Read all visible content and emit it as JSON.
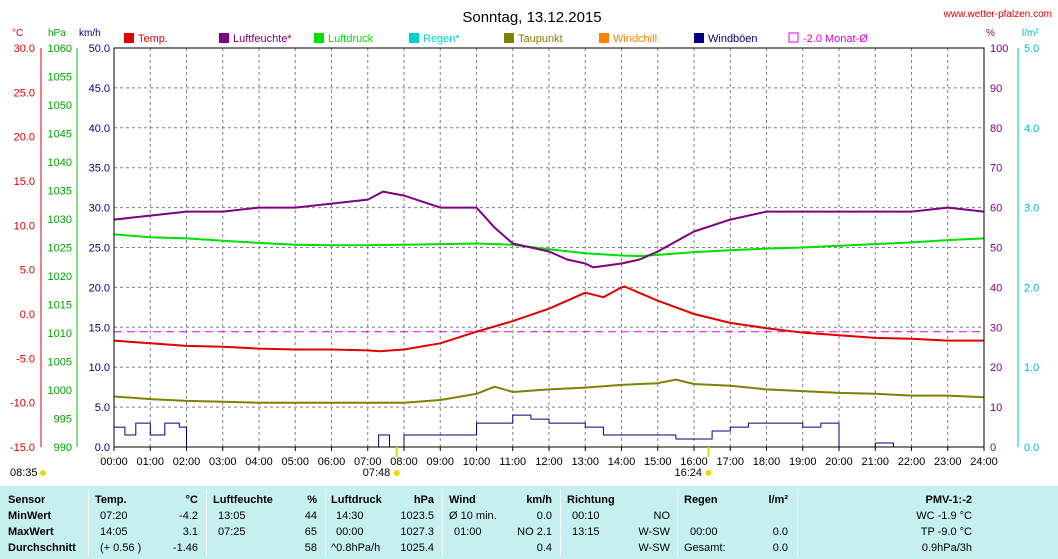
{
  "title": "Sonntag, 13.12.2015",
  "site": "www.wetter-pfalzen.com",
  "colors": {
    "temp": "#e00000",
    "humidity": "#800080",
    "pressure": "#00e000",
    "rain": "#00d0d0",
    "dewpoint": "#808000",
    "windchill": "#ff8000",
    "gusts": "#000080",
    "avg": "#e000e0",
    "grid": "#808080"
  },
  "axes": {
    "temp_unit": "°C",
    "pressure_unit": "hPa",
    "wind_unit": "km/h",
    "humidity_unit": "%",
    "rain_unit": "l/m²",
    "temp_ticks": [
      "30.0",
      "25.0",
      "20.0",
      "15.0",
      "10.0",
      "5.0",
      "0.0",
      "-5.0",
      "-10.0",
      "-15.0"
    ],
    "pressure_ticks": [
      "1060",
      "1055",
      "1050",
      "1045",
      "1040",
      "1035",
      "1030",
      "1025",
      "1020",
      "1015",
      "1010",
      "1005",
      "1000",
      "995",
      "990"
    ],
    "wind_ticks": [
      "50.0",
      "45.0",
      "40.0",
      "35.0",
      "30.0",
      "25.0",
      "20.0",
      "15.0",
      "10.0",
      "5.0",
      "0.0"
    ],
    "humidity_ticks": [
      "100",
      "90",
      "80",
      "70",
      "60",
      "50",
      "40",
      "30",
      "20",
      "10",
      "0"
    ],
    "rain_ticks": [
      "5.0",
      "4.0",
      "3.0",
      "2.0",
      "1.0",
      "0.0"
    ],
    "time_ticks": [
      "00:00",
      "01:00",
      "02:00",
      "03:00",
      "04:00",
      "05:00",
      "06:00",
      "07:00",
      "08:00",
      "09:00",
      "10:00",
      "11:00",
      "12:00",
      "13:00",
      "14:00",
      "15:00",
      "16:00",
      "17:00",
      "18:00",
      "19:00",
      "20:00",
      "21:00",
      "22:00",
      "23:00",
      "24:00"
    ],
    "markers": [
      {
        "label": "08:35",
        "hour": null
      },
      {
        "label": "07:48",
        "hour": 7.8
      },
      {
        "label": "16:24",
        "hour": 16.4
      }
    ]
  },
  "legend": [
    {
      "label": "Temp.",
      "key": "temp"
    },
    {
      "label": "Luftfeuchte*",
      "key": "humidity"
    },
    {
      "label": "Luftdruck",
      "key": "pressure"
    },
    {
      "label": "Regen*",
      "key": "rain"
    },
    {
      "label": "Taupunkt",
      "key": "dewpoint"
    },
    {
      "label": "Windchill",
      "key": "windchill"
    },
    {
      "label": "Windböen",
      "key": "gusts"
    },
    {
      "label": "-2.0 Monat-Ø",
      "key": "avg"
    }
  ],
  "chart_data": {
    "type": "line",
    "x_unit": "hour of day",
    "xlim": [
      0,
      24
    ],
    "temp_ylim": [
      -15,
      30
    ],
    "humidity_ylim": [
      0,
      100
    ],
    "pressure_ylim": [
      990,
      1060
    ],
    "wind_ylim": [
      0,
      50
    ],
    "rain_ylim": [
      0,
      5
    ],
    "series": [
      {
        "name": "Temp.",
        "axis": "temp",
        "unit": "°C",
        "x": [
          0,
          1,
          2,
          3,
          4,
          5,
          6,
          7,
          7.33,
          8,
          9,
          10,
          11,
          12,
          13,
          13.5,
          14,
          14.08,
          15,
          16,
          17,
          18,
          19,
          20,
          21,
          22,
          23,
          24
        ],
        "values": [
          -3.0,
          -3.3,
          -3.6,
          -3.7,
          -3.9,
          -4.0,
          -4.0,
          -4.1,
          -4.2,
          -4.0,
          -3.3,
          -2.0,
          -0.8,
          0.6,
          2.4,
          1.9,
          3.0,
          3.1,
          1.5,
          0.0,
          -1.0,
          -1.6,
          -2.1,
          -2.4,
          -2.7,
          -2.8,
          -3.0,
          -3.0
        ]
      },
      {
        "name": "Luftfeuchte*",
        "axis": "humidity",
        "unit": "%",
        "x": [
          0,
          1,
          2,
          3,
          4,
          5,
          6,
          7,
          7.42,
          8,
          9,
          10,
          10.5,
          11,
          11.5,
          12,
          12.5,
          13,
          13.22,
          14,
          14.5,
          15,
          16,
          17,
          18,
          19,
          20,
          21,
          22,
          23,
          24
        ],
        "values": [
          57,
          58,
          59,
          59,
          60,
          60,
          61,
          62,
          64,
          63,
          60,
          60,
          55,
          51,
          50,
          49,
          47,
          46,
          45,
          46,
          47,
          49,
          54,
          57,
          59,
          59,
          59,
          59,
          59,
          60,
          59
        ]
      },
      {
        "name": "Luftdruck",
        "axis": "pressure",
        "unit": "hPa",
        "x": [
          0,
          1,
          2,
          3,
          4,
          5,
          6,
          7,
          8,
          9,
          10,
          11,
          12,
          13,
          14,
          14.5,
          15,
          16,
          17,
          18,
          19,
          20,
          21,
          22,
          23,
          24
        ],
        "values": [
          1027.3,
          1026.8,
          1026.6,
          1026.2,
          1025.8,
          1025.5,
          1025.4,
          1025.4,
          1025.5,
          1025.6,
          1025.7,
          1025.5,
          1024.7,
          1024.0,
          1023.6,
          1023.5,
          1023.7,
          1024.2,
          1024.5,
          1024.8,
          1025.0,
          1025.3,
          1025.6,
          1025.9,
          1026.3,
          1026.6
        ]
      },
      {
        "name": "Regen*",
        "axis": "rain",
        "unit": "l/m²",
        "x": [
          0,
          24
        ],
        "values": [
          0.0,
          0.0
        ]
      },
      {
        "name": "Taupunkt",
        "axis": "temp",
        "unit": "°C",
        "x": [
          0,
          1,
          2,
          3,
          4,
          5,
          6,
          7,
          8,
          9,
          10,
          10.5,
          11,
          12,
          13,
          14,
          15,
          15.5,
          16,
          17,
          18,
          19,
          20,
          21,
          22,
          23,
          24
        ],
        "values": [
          -9.3,
          -9.6,
          -9.8,
          -9.9,
          -10.0,
          -10.0,
          -10.0,
          -10.0,
          -10.0,
          -9.7,
          -9.0,
          -8.2,
          -8.8,
          -8.5,
          -8.3,
          -8.0,
          -7.8,
          -7.4,
          -7.9,
          -8.1,
          -8.5,
          -8.7,
          -8.9,
          -9.0,
          -9.2,
          -9.2,
          -9.4
        ]
      },
      {
        "name": "Windböen",
        "axis": "wind",
        "unit": "km/h",
        "x": [
          0,
          0.3,
          0.6,
          1.0,
          1.4,
          1.8,
          2.0,
          7.0,
          7.3,
          7.6,
          8.0,
          8.5,
          9.0,
          9.5,
          10.0,
          10.5,
          11.0,
          11.5,
          12.0,
          12.5,
          13.0,
          13.5,
          14.0,
          14.5,
          15.0,
          15.5,
          16.0,
          16.5,
          17.0,
          17.5,
          18.0,
          18.5,
          19.0,
          19.5,
          20.0,
          20.5,
          21.0,
          21.5,
          22.0,
          24.0
        ],
        "values": [
          2.5,
          1.5,
          3.0,
          1.5,
          3.0,
          2.5,
          0,
          0,
          1.5,
          0,
          1.5,
          1.5,
          1.5,
          1.5,
          3.0,
          3.0,
          4.0,
          3.5,
          3.0,
          3.0,
          2.5,
          1.5,
          1.5,
          1.5,
          1.5,
          1.0,
          1.0,
          2.0,
          2.5,
          3.0,
          3.0,
          3.0,
          2.5,
          3.0,
          0,
          0,
          0.5,
          0,
          0,
          0
        ]
      },
      {
        "name": "-2.0 Monat-Ø",
        "axis": "temp",
        "unit": "°C",
        "x": [
          0,
          24
        ],
        "values": [
          -2.0,
          -2.0
        ]
      }
    ]
  },
  "stats": {
    "sensor": {
      "header": "Sensor",
      "rows": [
        "MinWert",
        "MaxWert",
        "Durchschnitt"
      ]
    },
    "temp": {
      "header": "Temp.",
      "unit": "°C",
      "rows": [
        [
          "07:20",
          "-4.2"
        ],
        [
          "14:05",
          "3.1"
        ],
        [
          "(+ 0.56 )",
          "-1.46"
        ]
      ]
    },
    "humidity": {
      "header": "Luftfeuchte",
      "unit": "%",
      "rows": [
        [
          "13:05",
          "44"
        ],
        [
          "07:25",
          "65"
        ],
        [
          "",
          "58"
        ]
      ]
    },
    "pressure": {
      "header": "Luftdruck",
      "unit": "hPa",
      "rows": [
        [
          "14:30",
          "1023.5"
        ],
        [
          "00:00",
          "1027.3"
        ],
        [
          "^0.8hPa/h",
          "1025.4"
        ]
      ]
    },
    "wind": {
      "header": "Wind",
      "unit": "km/h",
      "rows": [
        [
          "Ø 10 min.",
          "0.0"
        ],
        [
          "01:00",
          "NO 2.1"
        ],
        [
          "",
          "0.4"
        ]
      ]
    },
    "direction": {
      "header": "Richtung",
      "rows": [
        [
          "00:10",
          "NO"
        ],
        [
          "13:15",
          "W-SW"
        ],
        [
          "",
          "W-SW"
        ]
      ]
    },
    "rain": {
      "header": "Regen",
      "unit": "l/m²",
      "rows": [
        [
          "",
          ""
        ],
        [
          "00:00",
          "0.0"
        ],
        [
          "Gesamt:",
          "0.0"
        ]
      ]
    },
    "pmv": {
      "header": "PMV-1:-2",
      "rows": [
        "WC -1.9 °C",
        "TP -9.0 °C",
        "0.9hPa/3h"
      ]
    }
  }
}
